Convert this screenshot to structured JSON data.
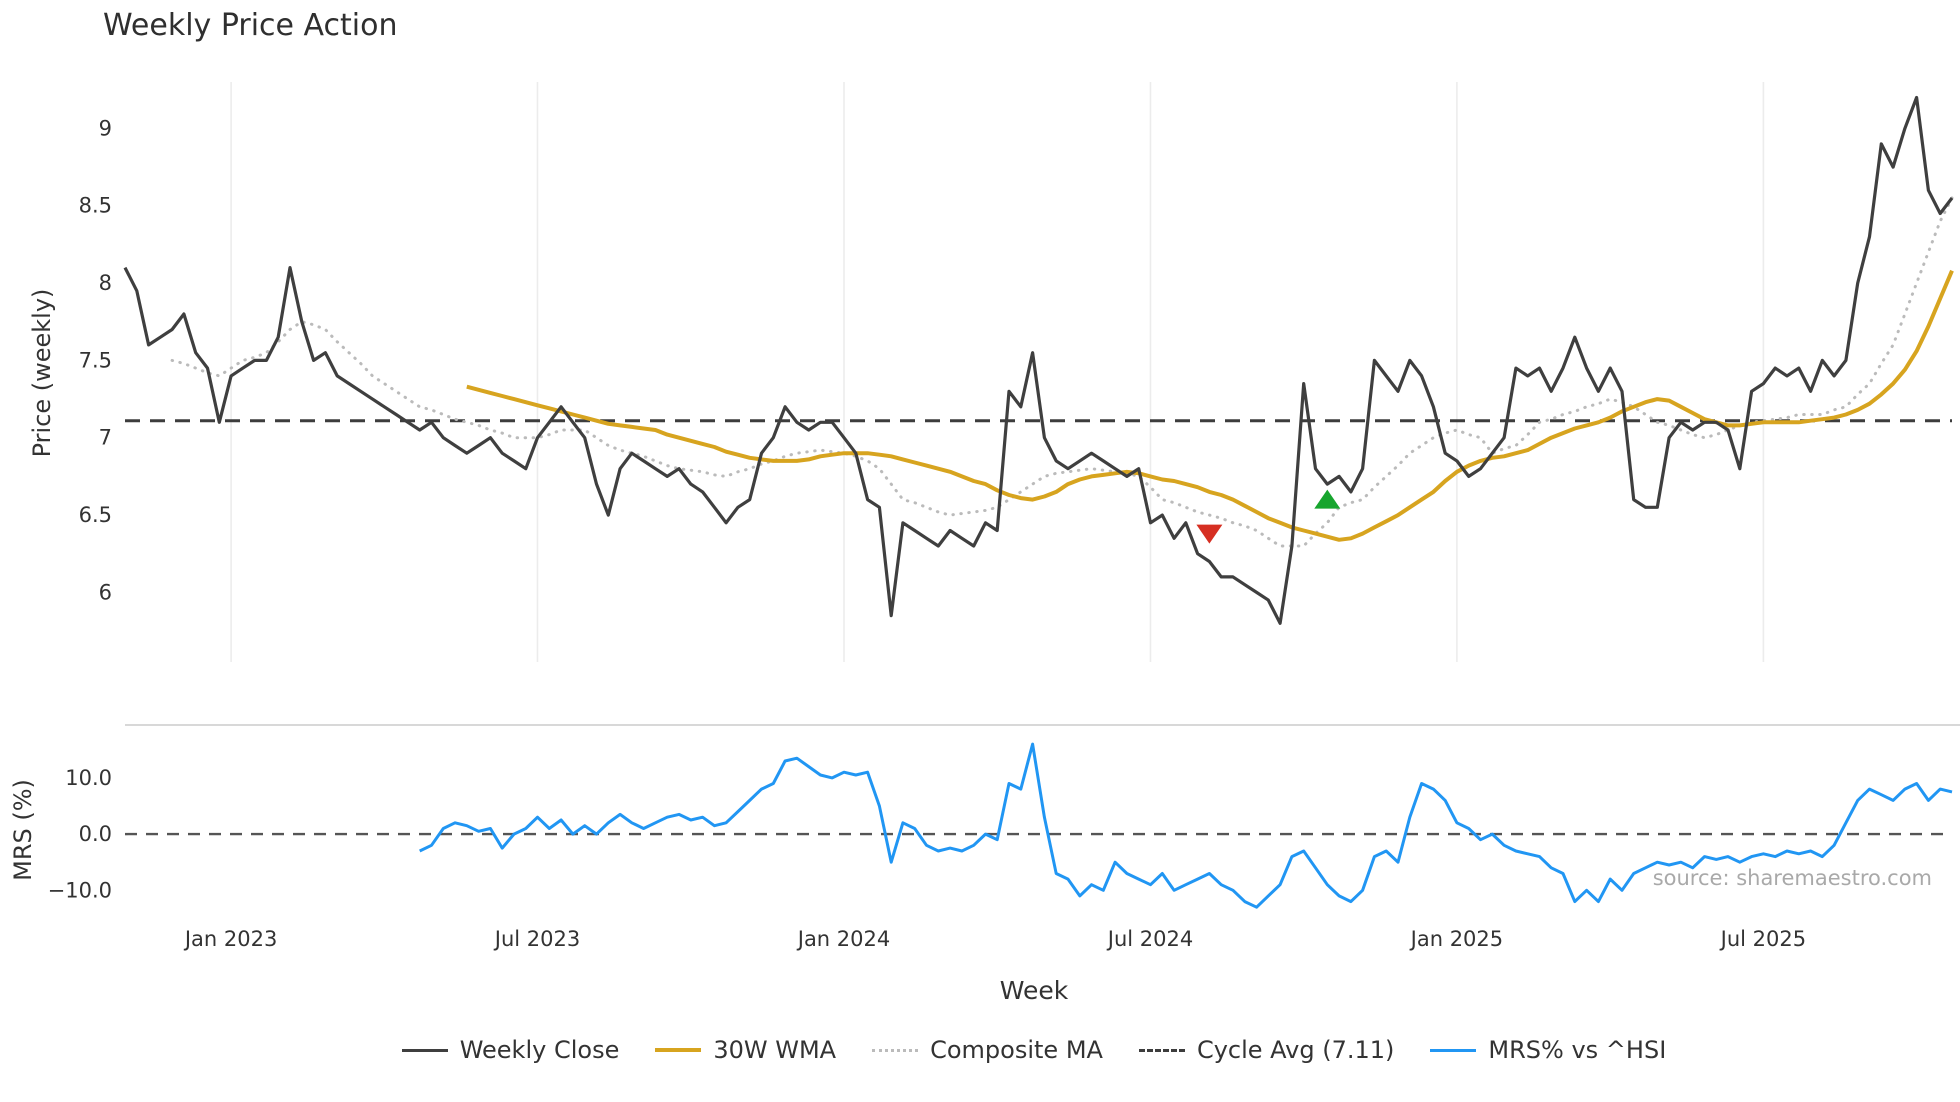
{
  "title": "Weekly Price Action",
  "xlabel": "Week",
  "watermark": "source: sharemaestro.com",
  "colors": {
    "weekly_close": "#3f3f3f",
    "wma30": "#d7a41f",
    "composite": "#bbbbbb",
    "cycle_avg": "#3d3d3d",
    "mrs": "#2196f3",
    "sell": "#d62f22",
    "buy": "#17a52e",
    "grid": "#ececec",
    "spine": "#cccccc",
    "zero_line": "#555555",
    "axis_text": "#333333"
  },
  "legend": {
    "items": [
      {
        "label": "Weekly Close",
        "swatch": "weekly_close",
        "style": "solid"
      },
      {
        "label": "30W WMA",
        "swatch": "wma30",
        "style": "solid"
      },
      {
        "label": "Composite MA",
        "swatch": "composite",
        "style": "dotted"
      },
      {
        "label": "Cycle Avg (7.11)",
        "swatch": "cycle_avg",
        "style": "dashed"
      },
      {
        "label": "MRS% vs ^HSI",
        "swatch": "mrs",
        "style": "solid"
      }
    ]
  },
  "chart_data": [
    {
      "id": "price",
      "type": "line",
      "ylabel": "Price (weekly)",
      "ylim": [
        5.55,
        9.3
      ],
      "yticks": [
        {
          "value": 6,
          "label": "6"
        },
        {
          "value": 6.5,
          "label": "6.5"
        },
        {
          "value": 7,
          "label": "7"
        },
        {
          "value": 7.5,
          "label": "7.5"
        },
        {
          "value": 8,
          "label": "8"
        },
        {
          "value": 8.5,
          "label": "8.5"
        },
        {
          "value": 9,
          "label": "9"
        }
      ],
      "xticks": [
        {
          "week": 9,
          "label": "Jan 2023"
        },
        {
          "week": 35,
          "label": "Jul 2023"
        },
        {
          "week": 61,
          "label": "Jan 2024"
        },
        {
          "week": 87,
          "label": "Jul 2024"
        },
        {
          "week": 113,
          "label": "Jan 2025"
        },
        {
          "week": 139,
          "label": "Jul 2025"
        }
      ],
      "x_range_weeks": [
        0,
        155
      ],
      "grid": "vertical",
      "cycle_avg": 7.11,
      "series": [
        {
          "name": "Weekly Close",
          "color_key": "weekly_close",
          "style": "solid",
          "start_week": 0,
          "values": [
            8.1,
            7.95,
            7.6,
            7.65,
            7.7,
            7.8,
            7.55,
            7.45,
            7.1,
            7.4,
            7.45,
            7.5,
            7.5,
            7.65,
            8.1,
            7.75,
            7.5,
            7.55,
            7.4,
            7.35,
            7.3,
            7.25,
            7.2,
            7.15,
            7.1,
            7.05,
            7.1,
            7.0,
            6.95,
            6.9,
            6.95,
            7.0,
            6.9,
            6.85,
            6.8,
            7.0,
            7.1,
            7.2,
            7.1,
            7.0,
            6.7,
            6.5,
            6.8,
            6.9,
            6.85,
            6.8,
            6.75,
            6.8,
            6.7,
            6.65,
            6.55,
            6.45,
            6.55,
            6.6,
            6.9,
            7.0,
            7.2,
            7.1,
            7.05,
            7.1,
            7.1,
            7.0,
            6.9,
            6.6,
            6.55,
            5.85,
            6.45,
            6.4,
            6.35,
            6.3,
            6.4,
            6.35,
            6.3,
            6.45,
            6.4,
            7.3,
            7.2,
            7.55,
            7.0,
            6.85,
            6.8,
            6.85,
            6.9,
            6.85,
            6.8,
            6.75,
            6.8,
            6.45,
            6.5,
            6.35,
            6.45,
            6.25,
            6.2,
            6.1,
            6.1,
            6.05,
            6.0,
            5.95,
            5.8,
            6.3,
            7.35,
            6.8,
            6.7,
            6.75,
            6.65,
            6.8,
            7.5,
            7.4,
            7.3,
            7.5,
            7.4,
            7.2,
            6.9,
            6.85,
            6.75,
            6.8,
            6.9,
            7.0,
            7.45,
            7.4,
            7.45,
            7.3,
            7.45,
            7.65,
            7.45,
            7.3,
            7.45,
            7.3,
            6.6,
            6.55,
            6.55,
            7.0,
            7.1,
            7.05,
            7.1,
            7.1,
            7.05,
            6.8,
            7.3,
            7.35,
            7.45,
            7.4,
            7.45,
            7.3,
            7.5,
            7.4,
            7.5,
            8.0,
            8.3,
            8.9,
            8.75,
            9.0,
            9.2,
            8.6,
            8.45,
            8.55
          ]
        },
        {
          "name": "30W WMA",
          "color_key": "wma30",
          "style": "solid",
          "start_week": 29,
          "values": [
            7.33,
            7.31,
            7.29,
            7.27,
            7.25,
            7.23,
            7.21,
            7.19,
            7.17,
            7.15,
            7.13,
            7.11,
            7.09,
            7.08,
            7.07,
            7.06,
            7.05,
            7.02,
            7.0,
            6.98,
            6.96,
            6.94,
            6.91,
            6.89,
            6.87,
            6.86,
            6.85,
            6.85,
            6.85,
            6.86,
            6.88,
            6.89,
            6.9,
            6.9,
            6.9,
            6.89,
            6.88,
            6.86,
            6.84,
            6.82,
            6.8,
            6.78,
            6.75,
            6.72,
            6.7,
            6.66,
            6.63,
            6.61,
            6.6,
            6.62,
            6.65,
            6.7,
            6.73,
            6.75,
            6.76,
            6.77,
            6.78,
            6.77,
            6.75,
            6.73,
            6.72,
            6.7,
            6.68,
            6.65,
            6.63,
            6.6,
            6.56,
            6.52,
            6.48,
            6.45,
            6.42,
            6.4,
            6.38,
            6.36,
            6.34,
            6.35,
            6.38,
            6.42,
            6.46,
            6.5,
            6.55,
            6.6,
            6.65,
            6.72,
            6.78,
            6.82,
            6.85,
            6.87,
            6.88,
            6.9,
            6.92,
            6.96,
            7.0,
            7.03,
            7.06,
            7.08,
            7.1,
            7.13,
            7.17,
            7.2,
            7.23,
            7.25,
            7.24,
            7.2,
            7.16,
            7.12,
            7.1,
            7.08,
            7.08,
            7.09,
            7.1,
            7.1,
            7.1,
            7.1,
            7.11,
            7.12,
            7.13,
            7.15,
            7.18,
            7.22,
            7.28,
            7.35,
            7.44,
            7.56,
            7.72,
            7.9,
            8.08
          ]
        },
        {
          "name": "Composite MA",
          "color_key": "composite",
          "style": "dotted",
          "start_week": 4,
          "values": [
            7.5,
            7.48,
            7.45,
            7.42,
            7.4,
            7.45,
            7.5,
            7.52,
            7.55,
            7.62,
            7.7,
            7.75,
            7.73,
            7.7,
            7.62,
            7.55,
            7.48,
            7.4,
            7.35,
            7.3,
            7.25,
            7.2,
            7.18,
            7.15,
            7.12,
            7.1,
            7.08,
            7.05,
            7.03,
            7.0,
            7.0,
            7.0,
            7.02,
            7.05,
            7.05,
            7.05,
            7.0,
            6.95,
            6.92,
            6.9,
            6.88,
            6.85,
            6.82,
            6.8,
            6.79,
            6.78,
            6.76,
            6.75,
            6.78,
            6.8,
            6.83,
            6.85,
            6.88,
            6.9,
            6.91,
            6.92,
            6.91,
            6.9,
            6.88,
            6.85,
            6.8,
            6.7,
            6.6,
            6.58,
            6.55,
            6.52,
            6.5,
            6.51,
            6.52,
            6.53,
            6.55,
            6.6,
            6.65,
            6.7,
            6.75,
            6.77,
            6.78,
            6.79,
            6.8,
            6.79,
            6.78,
            6.77,
            6.75,
            6.68,
            6.6,
            6.58,
            6.55,
            6.52,
            6.5,
            6.48,
            6.45,
            6.43,
            6.4,
            6.35,
            6.3,
            6.3,
            6.3,
            6.38,
            6.45,
            6.55,
            6.58,
            6.6,
            6.68,
            6.75,
            6.82,
            6.9,
            6.95,
            7.0,
            7.03,
            7.05,
            7.02,
            7.0,
            6.9,
            6.93,
            6.95,
            7.02,
            7.1,
            7.12,
            7.15,
            7.17,
            7.2,
            7.22,
            7.25,
            7.23,
            7.2,
            7.15,
            7.1,
            7.08,
            7.05,
            7.02,
            7.0,
            7.02,
            7.05,
            7.08,
            7.1,
            7.11,
            7.12,
            7.13,
            7.15,
            7.15,
            7.15,
            7.18,
            7.2,
            7.28,
            7.35,
            7.48,
            7.6,
            7.8,
            8.0,
            8.2,
            8.4,
            8.55
          ]
        }
      ],
      "markers": [
        {
          "kind": "sell",
          "shape": "triangle-down",
          "week": 92,
          "price": 6.38,
          "color_key": "sell"
        },
        {
          "kind": "buy",
          "shape": "triangle-up",
          "week": 102,
          "price": 6.6,
          "color_key": "buy"
        }
      ]
    },
    {
      "id": "mrs",
      "type": "line",
      "ylabel": "MRS (%)",
      "ylim": [
        -15.1,
        19.4
      ],
      "yticks": [
        {
          "value": 10,
          "label": "10.0"
        },
        {
          "value": 0,
          "label": "0.0"
        },
        {
          "value": -10,
          "label": "−10.0"
        }
      ],
      "zero_dashed": true,
      "series": [
        {
          "name": "MRS% vs ^HSI",
          "color_key": "mrs",
          "style": "solid",
          "start_week": 25,
          "values": [
            -3,
            -2,
            1,
            2,
            1.5,
            0.5,
            1,
            -2.5,
            0,
            1,
            3,
            1,
            2.5,
            0,
            1.5,
            0,
            2,
            3.5,
            2,
            1,
            2,
            3,
            3.5,
            2.5,
            3,
            1.5,
            2,
            4,
            6,
            8,
            9,
            13,
            13.5,
            12,
            10.5,
            10,
            11,
            10.5,
            11,
            5,
            -5,
            2,
            1,
            -2,
            -3,
            -2.5,
            -3,
            -2,
            0,
            -1,
            9,
            8,
            16,
            3,
            -7,
            -8,
            -11,
            -9,
            -10,
            -5,
            -7,
            -8,
            -9,
            -7,
            -10,
            -9,
            -8,
            -7,
            -9,
            -10,
            -12,
            -13,
            -11,
            -9,
            -4,
            -3,
            -6,
            -9,
            -11,
            -12,
            -10,
            -4,
            -3,
            -5,
            3,
            9,
            8,
            6,
            2,
            1,
            -1,
            0,
            -2,
            -3,
            -3.5,
            -4,
            -6,
            -7,
            -12,
            -10,
            -12,
            -8,
            -10,
            -7,
            -6,
            -5,
            -5.5,
            -5,
            -6,
            -4,
            -4.5,
            -4,
            -5,
            -4,
            -3.5,
            -4,
            -3,
            -3.5,
            -3,
            -4,
            -2,
            2,
            6,
            8,
            7,
            6,
            8,
            9,
            6,
            8,
            7.5
          ]
        }
      ]
    }
  ]
}
